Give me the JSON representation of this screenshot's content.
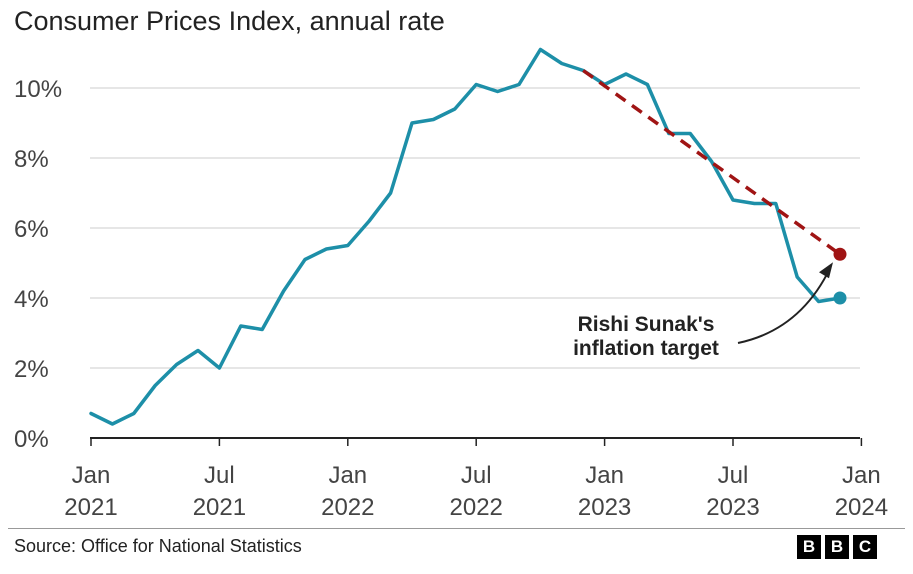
{
  "chart_data": {
    "type": "line",
    "title": "Consumer Prices Index, annual rate",
    "xlabel": "",
    "ylabel": "",
    "ylim": [
      0,
      11
    ],
    "y_ticks": [
      0,
      2,
      4,
      6,
      8,
      10
    ],
    "y_tick_labels": [
      "0%",
      "2%",
      "4%",
      "6%",
      "8%",
      "10%"
    ],
    "x_ticks": [
      {
        "date": "2021-01",
        "label_month": "Jan",
        "label_year": "2021"
      },
      {
        "date": "2021-07",
        "label_month": "Jul",
        "label_year": "2021"
      },
      {
        "date": "2022-01",
        "label_month": "Jan",
        "label_year": "2022"
      },
      {
        "date": "2022-07",
        "label_month": "Jul",
        "label_year": "2022"
      },
      {
        "date": "2023-01",
        "label_month": "Jan",
        "label_year": "2023"
      },
      {
        "date": "2023-07",
        "label_month": "Jul",
        "label_year": "2023"
      },
      {
        "date": "2024-01",
        "label_month": "Jan",
        "label_year": "2024"
      }
    ],
    "grid": true,
    "series": [
      {
        "color": "#1d8fa8",
        "x": [
          "2021-01",
          "2021-02",
          "2021-03",
          "2021-04",
          "2021-05",
          "2021-06",
          "2021-07",
          "2021-08",
          "2021-09",
          "2021-10",
          "2021-11",
          "2021-12",
          "2022-01",
          "2022-02",
          "2022-03",
          "2022-04",
          "2022-05",
          "2022-06",
          "2022-07",
          "2022-08",
          "2022-09",
          "2022-10",
          "2022-11",
          "2022-12",
          "2023-01",
          "2023-02",
          "2023-03",
          "2023-04",
          "2023-05",
          "2023-06",
          "2023-07",
          "2023-08",
          "2023-09",
          "2023-10",
          "2023-11",
          "2023-12"
        ],
        "values": [
          0.7,
          0.4,
          0.7,
          1.5,
          2.1,
          2.5,
          2.0,
          3.2,
          3.1,
          4.2,
          5.1,
          5.4,
          5.5,
          6.2,
          7.0,
          9.0,
          9.1,
          9.4,
          10.1,
          9.9,
          10.1,
          11.1,
          10.7,
          10.5,
          10.1,
          10.4,
          10.1,
          8.7,
          8.7,
          7.9,
          6.8,
          6.7,
          6.7,
          4.6,
          3.9,
          4.0
        ],
        "end_marker": true
      },
      {
        "color": "#a01414",
        "style": "dashed",
        "x": [
          "2022-12",
          "2023-12"
        ],
        "values": [
          10.5,
          5.25
        ],
        "end_marker": true
      }
    ],
    "annotation": {
      "lines": [
        "Rishi Sunak's",
        "inflation target"
      ],
      "points_to": {
        "date": "2023-12",
        "value": 5.25
      }
    }
  },
  "source": "Source: Office for National Statistics",
  "logo": [
    "B",
    "B",
    "C"
  ]
}
